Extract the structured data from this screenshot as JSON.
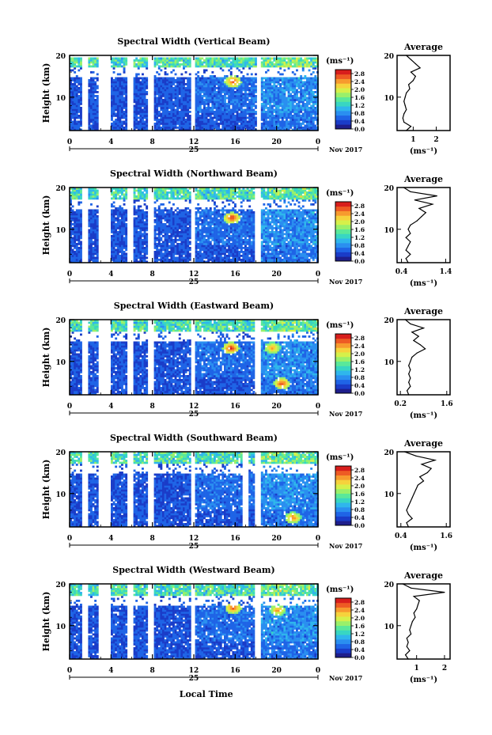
{
  "figure": {
    "ylabel": "Height (km)",
    "xlabel": "Local Time",
    "date_label": "25",
    "month_label": "Nov 2017",
    "colorbar_unit": "(ms⁻¹)",
    "avg_xlabel": "(ms⁻¹)",
    "avg_title": "Average"
  },
  "colors": {
    "scale": [
      "#1e1e8c",
      "#1a3cc8",
      "#1f64e6",
      "#2a8ff0",
      "#2fb6ec",
      "#38d6c2",
      "#5ae89a",
      "#9af06a",
      "#d6f04a",
      "#f6d23c",
      "#f79a2e",
      "#ee5a24",
      "#d81e1c"
    ]
  },
  "chart_data": [
    {
      "type": "heatmap",
      "title": "Spectral Width (Vertical Beam)",
      "x_range": [
        0,
        24
      ],
      "x_ticks": [
        "0",
        "4",
        "8",
        "12",
        "16",
        "20",
        "0"
      ],
      "y_range": [
        2,
        20
      ],
      "y_ticks": [
        "10",
        "20"
      ],
      "colorbar_ticks": [
        "0.0",
        "0.4",
        "0.8",
        "1.2",
        "1.6",
        "2.0",
        "2.4",
        "2.8"
      ],
      "colorbar_range": [
        0,
        3
      ],
      "gaps_hours": [
        [
          1.0,
          1.6
        ],
        [
          2.6,
          3.8
        ],
        [
          5.4,
          6.0
        ],
        [
          7.5,
          8.0
        ],
        [
          11.6,
          12.0
        ],
        [
          18.0,
          18.4
        ]
      ],
      "top_km": 18.5,
      "hot_spots": [
        {
          "t": 15.7,
          "h": 13.5,
          "v": 2.8
        }
      ],
      "profile": {
        "title": "Average",
        "x_ticks": [
          "1",
          "2"
        ],
        "x_range": [
          0.3,
          2.6
        ],
        "y_ticks": [
          "10",
          "20"
        ],
        "heights": [
          2,
          3,
          4,
          5,
          6,
          7,
          8,
          9,
          10,
          11,
          12,
          13,
          14,
          15,
          16,
          17,
          18,
          19,
          20
        ],
        "values": [
          0.7,
          0.9,
          0.6,
          0.55,
          0.6,
          0.7,
          0.65,
          0.6,
          0.65,
          0.7,
          0.85,
          0.8,
          1.0,
          1.1,
          0.9,
          1.3,
          1.1,
          0.9,
          0.7
        ]
      }
    },
    {
      "type": "heatmap",
      "title": "Spectral Width (Northward Beam)",
      "x_range": [
        0,
        24
      ],
      "x_ticks": [
        "0",
        "4",
        "8",
        "12",
        "16",
        "20",
        "0"
      ],
      "y_range": [
        2,
        20
      ],
      "y_ticks": [
        "10",
        "20"
      ],
      "colorbar_ticks": [
        "0.0",
        "0.4",
        "0.8",
        "1.2",
        "1.6",
        "2.0",
        "2.4",
        "2.8"
      ],
      "colorbar_range": [
        0,
        3
      ],
      "gaps_hours": [
        [
          1.0,
          1.6
        ],
        [
          2.6,
          3.8
        ],
        [
          5.4,
          6.0
        ],
        [
          7.5,
          8.0
        ],
        [
          11.6,
          12.0
        ],
        [
          17.8,
          18.4
        ]
      ],
      "top_km": 19,
      "hot_spots": [
        {
          "t": 15.6,
          "h": 12.5,
          "v": 2.9
        }
      ],
      "profile": {
        "title": "Average",
        "x_ticks": [
          "0.4",
          "1.4"
        ],
        "x_range": [
          0.3,
          1.5
        ],
        "y_ticks": [
          "10",
          "20"
        ],
        "heights": [
          2,
          3,
          4,
          5,
          6,
          7,
          8,
          9,
          10,
          11,
          12,
          13,
          14,
          15,
          16,
          17,
          18,
          19,
          20
        ],
        "values": [
          0.55,
          0.5,
          0.6,
          0.5,
          0.55,
          0.6,
          0.5,
          0.6,
          0.55,
          0.6,
          0.75,
          0.85,
          0.95,
          0.8,
          1.1,
          0.7,
          1.2,
          0.6,
          0.45
        ]
      }
    },
    {
      "type": "heatmap",
      "title": "Spectral Width (Eastward Beam)",
      "x_range": [
        0,
        24
      ],
      "x_ticks": [
        "0",
        "4",
        "8",
        "12",
        "16",
        "20",
        "0"
      ],
      "y_range": [
        2,
        20
      ],
      "y_ticks": [
        "10",
        "20"
      ],
      "colorbar_ticks": [
        "0.0",
        "0.4",
        "0.8",
        "1.2",
        "1.6",
        "2.0",
        "2.4",
        "2.8"
      ],
      "colorbar_range": [
        0,
        3
      ],
      "gaps_hours": [
        [
          1.0,
          1.6
        ],
        [
          2.6,
          3.8
        ],
        [
          5.4,
          6.0
        ],
        [
          7.5,
          8.0
        ],
        [
          11.6,
          12.0
        ],
        [
          17.8,
          18.4
        ]
      ],
      "top_km": 19,
      "hot_spots": [
        {
          "t": 15.5,
          "h": 13.0,
          "v": 2.9
        },
        {
          "t": 20.4,
          "h": 4.5,
          "v": 2.8
        },
        {
          "t": 19.5,
          "h": 13.0,
          "v": 2.5
        }
      ],
      "profile": {
        "title": "Average",
        "x_ticks": [
          "0.2",
          "1.6"
        ],
        "x_range": [
          0.1,
          1.7
        ],
        "y_ticks": [
          "10",
          "20"
        ],
        "heights": [
          2,
          3,
          4,
          5,
          6,
          7,
          8,
          9,
          10,
          11,
          12,
          13,
          14,
          15,
          16,
          17,
          18,
          19,
          20
        ],
        "values": [
          0.45,
          0.4,
          0.5,
          0.45,
          0.5,
          0.45,
          0.5,
          0.45,
          0.5,
          0.55,
          0.7,
          0.95,
          0.8,
          0.6,
          0.75,
          0.55,
          0.9,
          0.5,
          0.35
        ]
      }
    },
    {
      "type": "heatmap",
      "title": "Spectral Width (Southward Beam)",
      "x_range": [
        0,
        24
      ],
      "x_ticks": [
        "0",
        "4",
        "8",
        "12",
        "16",
        "20",
        "0"
      ],
      "y_range": [
        2,
        20
      ],
      "y_ticks": [
        "10",
        "20"
      ],
      "colorbar_ticks": [
        "0.0",
        "0.4",
        "0.8",
        "1.2",
        "1.6",
        "2.0",
        "2.4",
        "2.8"
      ],
      "colorbar_range": [
        0,
        3
      ],
      "gaps_hours": [
        [
          1.0,
          1.6
        ],
        [
          2.6,
          3.8
        ],
        [
          5.4,
          6.0
        ],
        [
          7.5,
          8.0
        ],
        [
          11.6,
          12.0
        ],
        [
          16.6,
          17.2
        ],
        [
          17.8,
          18.4
        ]
      ],
      "top_km": 19,
      "hot_spots": [
        {
          "t": 21.5,
          "h": 4.0,
          "v": 2.6
        }
      ],
      "profile": {
        "title": "Average",
        "x_ticks": [
          "0.4",
          "1.6"
        ],
        "x_range": [
          0.3,
          1.7
        ],
        "y_ticks": [
          "10",
          "20"
        ],
        "heights": [
          2,
          3,
          4,
          5,
          6,
          7,
          8,
          9,
          10,
          11,
          12,
          13,
          14,
          15,
          16,
          17,
          18,
          19,
          20
        ],
        "values": [
          0.6,
          0.55,
          0.7,
          0.6,
          0.55,
          0.6,
          0.65,
          0.7,
          0.75,
          0.8,
          0.85,
          1.0,
          0.9,
          1.1,
          1.2,
          0.95,
          1.3,
          0.8,
          0.5
        ]
      }
    },
    {
      "type": "heatmap",
      "title": "Spectral Width (Westward Beam)",
      "x_range": [
        0,
        24
      ],
      "x_ticks": [
        "0",
        "4",
        "8",
        "12",
        "16",
        "20",
        "0"
      ],
      "y_range": [
        2,
        20
      ],
      "y_ticks": [
        "10",
        "20"
      ],
      "colorbar_ticks": [
        "0.0",
        "0.4",
        "0.8",
        "1.2",
        "1.6",
        "2.0",
        "2.4",
        "2.8"
      ],
      "colorbar_range": [
        0,
        3
      ],
      "gaps_hours": [
        [
          1.0,
          1.6
        ],
        [
          2.6,
          3.8
        ],
        [
          5.4,
          6.0
        ],
        [
          7.5,
          8.0
        ],
        [
          11.6,
          12.0
        ],
        [
          17.8,
          18.4
        ]
      ],
      "top_km": 19,
      "hot_spots": [
        {
          "t": 15.7,
          "h": 14.0,
          "v": 2.7
        },
        {
          "t": 20.0,
          "h": 13.5,
          "v": 2.5
        }
      ],
      "profile": {
        "title": "Average",
        "x_ticks": [
          "1",
          "2"
        ],
        "x_range": [
          0.3,
          2.2
        ],
        "y_ticks": [
          "10",
          "20"
        ],
        "heights": [
          2,
          3,
          4,
          5,
          6,
          7,
          8,
          9,
          10,
          11,
          12,
          13,
          14,
          15,
          16,
          17,
          18,
          19,
          20
        ],
        "values": [
          0.7,
          0.6,
          0.75,
          0.65,
          0.7,
          0.65,
          0.8,
          0.75,
          0.8,
          0.85,
          0.95,
          0.9,
          1.0,
          1.05,
          1.1,
          0.9,
          2.0,
          0.8,
          0.5
        ]
      }
    }
  ]
}
